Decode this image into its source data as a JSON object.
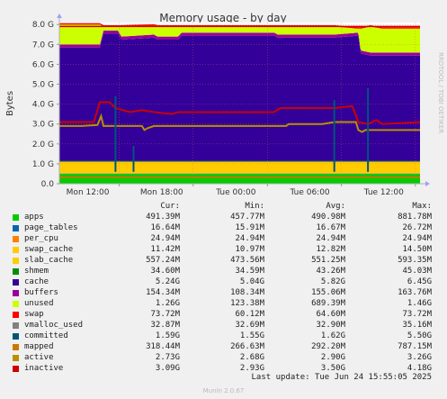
{
  "chart_data": {
    "type": "area",
    "title": "Memory usage - by day",
    "ylabel": "Bytes",
    "side_label": "RRDTOOL / TOBI OETIKER",
    "ylim": [
      0,
      8.1
    ],
    "yticks": [
      "0.0",
      "1.0 G",
      "2.0 G",
      "3.0 G",
      "4.0 G",
      "5.0 G",
      "6.0 G",
      "7.0 G",
      "8.0 G"
    ],
    "xticks": [
      {
        "label": "Mon 12:00",
        "t": 0.166
      },
      {
        "label": "Mon 18:00",
        "t": 0.371
      },
      {
        "label": "Tue 00:00",
        "t": 0.577
      },
      {
        "label": "Tue 06:00",
        "t": 0.782
      },
      {
        "label": "Tue 12:00",
        "t": 0.987
      }
    ],
    "x_range_hours": [
      7.13,
      37.13
    ],
    "stack": [
      {
        "name": "apps",
        "color": "#00cc00",
        "values": [
          [
            7.13,
            0.49
          ],
          [
            37.13,
            0.49
          ]
        ]
      },
      {
        "name": "page_tables",
        "color": "#0066b3",
        "values": [
          [
            7.13,
            0.017
          ],
          [
            37.13,
            0.017
          ]
        ]
      },
      {
        "name": "per_cpu",
        "color": "#ff8000",
        "values": [
          [
            7.13,
            0.025
          ],
          [
            37.13,
            0.025
          ]
        ]
      },
      {
        "name": "swap_cache",
        "color": "#ffcc00",
        "values": [
          [
            7.13,
            0.011
          ],
          [
            37.13,
            0.011
          ]
        ]
      },
      {
        "name": "slab_cache",
        "color": "#ffcc00",
        "values": [
          [
            7.13,
            0.56
          ],
          [
            37.13,
            0.56
          ]
        ]
      },
      {
        "name": "shmem",
        "color": "#008f00",
        "values": [
          [
            7.13,
            0.035
          ],
          [
            37.13,
            0.035
          ]
        ]
      },
      {
        "name": "cache",
        "color": "#330099",
        "values": [
          [
            7.13,
            5.7
          ],
          [
            10.5,
            5.7
          ],
          [
            10.8,
            6.4
          ],
          [
            12.0,
            6.4
          ],
          [
            12.3,
            6.1
          ],
          [
            15.0,
            6.2
          ],
          [
            15.3,
            6.1
          ],
          [
            17.0,
            6.1
          ],
          [
            17.3,
            6.3
          ],
          [
            25.0,
            6.3
          ],
          [
            25.3,
            6.2
          ],
          [
            26.0,
            6.2
          ],
          [
            30.0,
            6.2
          ],
          [
            32.0,
            6.3
          ],
          [
            32.2,
            5.4
          ],
          [
            33.0,
            5.3
          ],
          [
            34.0,
            5.3
          ],
          [
            37.13,
            5.3
          ]
        ]
      },
      {
        "name": "buffers",
        "color": "#990099",
        "values": [
          [
            7.13,
            0.154
          ],
          [
            37.13,
            0.154
          ]
        ]
      },
      {
        "name": "unused",
        "color": "#ccff00",
        "values": [
          [
            7.13,
            1.0
          ],
          [
            10.5,
            1.0
          ],
          [
            10.8,
            0.2
          ],
          [
            12.0,
            0.2
          ],
          [
            12.3,
            0.5
          ],
          [
            15.0,
            0.45
          ],
          [
            15.3,
            0.5
          ],
          [
            17.0,
            0.5
          ],
          [
            17.3,
            0.3
          ],
          [
            25.0,
            0.3
          ],
          [
            25.3,
            0.4
          ],
          [
            30.0,
            0.4
          ],
          [
            32.0,
            0.2
          ],
          [
            32.2,
            1.1
          ],
          [
            33.0,
            1.3
          ],
          [
            34.0,
            1.2
          ],
          [
            37.13,
            1.2
          ]
        ]
      },
      {
        "name": "swap",
        "color": "#ff0000",
        "values": [
          [
            7.13,
            0.074
          ],
          [
            37.13,
            0.074
          ]
        ]
      }
    ],
    "lines": [
      {
        "name": "mapped",
        "color": "#cc7700",
        "values": [
          [
            7.13,
            0.32
          ],
          [
            37.13,
            0.32
          ]
        ]
      },
      {
        "name": "active",
        "color": "#b99000",
        "values": [
          [
            7.13,
            2.9
          ],
          [
            9.0,
            2.9
          ],
          [
            10.3,
            2.95
          ],
          [
            10.6,
            3.4
          ],
          [
            10.8,
            2.9
          ],
          [
            14.0,
            2.9
          ],
          [
            14.2,
            2.7
          ],
          [
            14.5,
            2.8
          ],
          [
            15.0,
            2.9
          ],
          [
            20.0,
            2.9
          ],
          [
            26.0,
            2.9
          ],
          [
            26.2,
            3.0
          ],
          [
            29.0,
            3.0
          ],
          [
            30.0,
            3.1
          ],
          [
            31.8,
            3.1
          ],
          [
            32.0,
            2.7
          ],
          [
            32.3,
            2.6
          ],
          [
            32.6,
            2.7
          ],
          [
            37.13,
            2.7
          ]
        ]
      },
      {
        "name": "inactive",
        "color": "#cc0000",
        "values": [
          [
            7.13,
            3.1
          ],
          [
            10.0,
            3.1
          ],
          [
            10.5,
            4.1
          ],
          [
            11.3,
            4.1
          ],
          [
            11.8,
            3.8
          ],
          [
            13.0,
            3.6
          ],
          [
            14.0,
            3.7
          ],
          [
            15.0,
            3.6
          ],
          [
            16.5,
            3.5
          ],
          [
            17.0,
            3.6
          ],
          [
            25.0,
            3.6
          ],
          [
            25.5,
            3.8
          ],
          [
            30.0,
            3.8
          ],
          [
            31.5,
            3.9
          ],
          [
            32.0,
            3.1
          ],
          [
            32.8,
            3.0
          ],
          [
            33.5,
            3.2
          ],
          [
            34.0,
            3.0
          ],
          [
            37.13,
            3.1
          ]
        ]
      }
    ],
    "spikes": [
      {
        "name": "committed",
        "color": "#00557a",
        "values": [
          [
            11.8,
            4.4
          ],
          [
            13.3,
            1.9
          ],
          [
            30.0,
            4.2
          ],
          [
            32.8,
            4.8
          ]
        ]
      }
    ],
    "limit_line": {
      "value": 7.9,
      "color": "#d00000"
    }
  },
  "legend_header": {
    "cur": "Cur:",
    "min": "Min:",
    "avg": "Avg:",
    "max": "Max:"
  },
  "legend": [
    {
      "name": "apps",
      "color": "#00cc00",
      "cur": "491.39M",
      "min": "457.77M",
      "avg": "490.98M",
      "max": "881.78M"
    },
    {
      "name": "page_tables",
      "color": "#0066b3",
      "cur": "16.64M",
      "min": "15.91M",
      "avg": "16.67M",
      "max": "26.72M"
    },
    {
      "name": "per_cpu",
      "color": "#ff8000",
      "cur": "24.94M",
      "min": "24.94M",
      "avg": "24.94M",
      "max": "24.94M"
    },
    {
      "name": "swap_cache",
      "color": "#ffcc00",
      "cur": "11.42M",
      "min": "10.97M",
      "avg": "12.82M",
      "max": "14.50M"
    },
    {
      "name": "slab_cache",
      "color": "#ffcc00",
      "cur": "557.24M",
      "min": "473.56M",
      "avg": "551.25M",
      "max": "593.35M"
    },
    {
      "name": "shmem",
      "color": "#008f00",
      "cur": "34.60M",
      "min": "34.59M",
      "avg": "43.26M",
      "max": "45.03M"
    },
    {
      "name": "cache",
      "color": "#330099",
      "cur": "5.24G",
      "min": "5.04G",
      "avg": "5.82G",
      "max": "6.45G"
    },
    {
      "name": "buffers",
      "color": "#990099",
      "cur": "154.34M",
      "min": "108.34M",
      "avg": "155.06M",
      "max": "163.76M"
    },
    {
      "name": "unused",
      "color": "#ccff00",
      "cur": "1.26G",
      "min": "123.38M",
      "avg": "689.39M",
      "max": "1.46G"
    },
    {
      "name": "swap",
      "color": "#ff0000",
      "cur": "73.72M",
      "min": "60.12M",
      "avg": "64.60M",
      "max": "73.72M"
    },
    {
      "name": "vmalloc_used",
      "color": "#808080",
      "cur": "32.87M",
      "min": "32.69M",
      "avg": "32.90M",
      "max": "35.16M"
    },
    {
      "name": "committed",
      "color": "#00557a",
      "cur": "1.59G",
      "min": "1.55G",
      "avg": "1.62G",
      "max": "5.50G"
    },
    {
      "name": "mapped",
      "color": "#cc7700",
      "cur": "318.44M",
      "min": "266.63M",
      "avg": "292.20M",
      "max": "787.15M"
    },
    {
      "name": "active",
      "color": "#b99000",
      "cur": "2.73G",
      "min": "2.68G",
      "avg": "2.90G",
      "max": "3.26G"
    },
    {
      "name": "inactive",
      "color": "#cc0000",
      "cur": "3.09G",
      "min": "2.93G",
      "avg": "3.50G",
      "max": "4.18G"
    }
  ],
  "last_update": "Last update: Tue Jun 24 15:55:05 2025",
  "version": "Munin 2.0.67"
}
